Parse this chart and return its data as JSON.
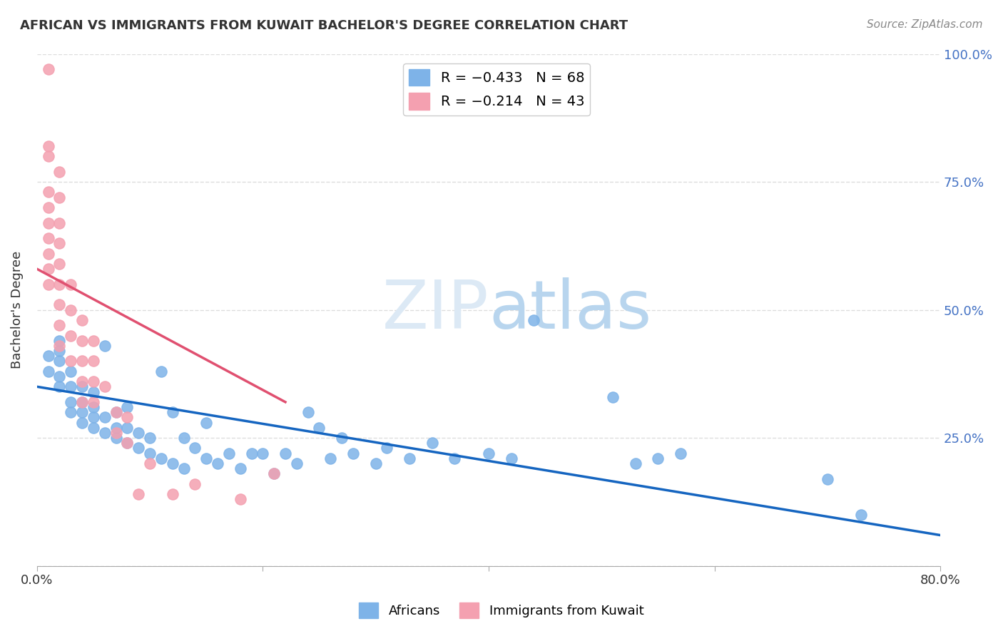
{
  "title": "AFRICAN VS IMMIGRANTS FROM KUWAIT BACHELOR'S DEGREE CORRELATION CHART",
  "source": "Source: ZipAtlas.com",
  "ylabel": "Bachelor's Degree",
  "xlim": [
    0.0,
    0.8
  ],
  "ylim": [
    0.0,
    1.0
  ],
  "yticks": [
    0.0,
    0.25,
    0.5,
    0.75,
    1.0
  ],
  "ytick_labels": [
    "",
    "25.0%",
    "50.0%",
    "75.0%",
    "100.0%"
  ],
  "legend_blue_r": "R = −0.433",
  "legend_blue_n": "N = 68",
  "legend_pink_r": "R = −0.214",
  "legend_pink_n": "N = 43",
  "blue_color": "#7EB3E8",
  "pink_color": "#F4A0B0",
  "trendline_blue_color": "#1565C0",
  "trendline_pink_color": "#E05070",
  "blue_scatter_x": [
    0.01,
    0.01,
    0.02,
    0.02,
    0.02,
    0.02,
    0.02,
    0.03,
    0.03,
    0.03,
    0.03,
    0.04,
    0.04,
    0.04,
    0.04,
    0.05,
    0.05,
    0.05,
    0.05,
    0.06,
    0.06,
    0.06,
    0.07,
    0.07,
    0.07,
    0.08,
    0.08,
    0.08,
    0.09,
    0.09,
    0.1,
    0.1,
    0.11,
    0.11,
    0.12,
    0.12,
    0.13,
    0.13,
    0.14,
    0.15,
    0.15,
    0.16,
    0.17,
    0.18,
    0.19,
    0.2,
    0.21,
    0.22,
    0.23,
    0.24,
    0.25,
    0.26,
    0.27,
    0.28,
    0.3,
    0.31,
    0.33,
    0.35,
    0.37,
    0.4,
    0.42,
    0.44,
    0.51,
    0.53,
    0.55,
    0.57,
    0.7,
    0.73
  ],
  "blue_scatter_y": [
    0.38,
    0.41,
    0.35,
    0.37,
    0.4,
    0.42,
    0.44,
    0.3,
    0.32,
    0.35,
    0.38,
    0.28,
    0.3,
    0.32,
    0.35,
    0.27,
    0.29,
    0.31,
    0.34,
    0.26,
    0.29,
    0.43,
    0.25,
    0.27,
    0.3,
    0.24,
    0.27,
    0.31,
    0.23,
    0.26,
    0.22,
    0.25,
    0.21,
    0.38,
    0.2,
    0.3,
    0.19,
    0.25,
    0.23,
    0.21,
    0.28,
    0.2,
    0.22,
    0.19,
    0.22,
    0.22,
    0.18,
    0.22,
    0.2,
    0.3,
    0.27,
    0.21,
    0.25,
    0.22,
    0.2,
    0.23,
    0.21,
    0.24,
    0.21,
    0.22,
    0.21,
    0.48,
    0.33,
    0.2,
    0.21,
    0.22,
    0.17,
    0.1
  ],
  "pink_scatter_x": [
    0.01,
    0.01,
    0.01,
    0.01,
    0.01,
    0.01,
    0.01,
    0.01,
    0.01,
    0.01,
    0.02,
    0.02,
    0.02,
    0.02,
    0.02,
    0.02,
    0.02,
    0.02,
    0.02,
    0.03,
    0.03,
    0.03,
    0.03,
    0.04,
    0.04,
    0.04,
    0.04,
    0.04,
    0.05,
    0.05,
    0.05,
    0.05,
    0.06,
    0.07,
    0.07,
    0.08,
    0.08,
    0.09,
    0.1,
    0.12,
    0.14,
    0.18,
    0.21
  ],
  "pink_scatter_y": [
    0.97,
    0.82,
    0.8,
    0.73,
    0.7,
    0.67,
    0.64,
    0.61,
    0.58,
    0.55,
    0.77,
    0.72,
    0.67,
    0.63,
    0.59,
    0.55,
    0.51,
    0.47,
    0.43,
    0.55,
    0.5,
    0.45,
    0.4,
    0.48,
    0.44,
    0.4,
    0.36,
    0.32,
    0.44,
    0.4,
    0.36,
    0.32,
    0.35,
    0.3,
    0.26,
    0.29,
    0.24,
    0.14,
    0.2,
    0.14,
    0.16,
    0.13,
    0.18
  ],
  "blue_trend_x": [
    0.0,
    0.8
  ],
  "blue_trend_y": [
    0.35,
    0.06
  ],
  "pink_trend_x": [
    0.0,
    0.22
  ],
  "pink_trend_y": [
    0.58,
    0.32
  ],
  "background_color": "#FFFFFF",
  "grid_color": "#DDDDDD"
}
